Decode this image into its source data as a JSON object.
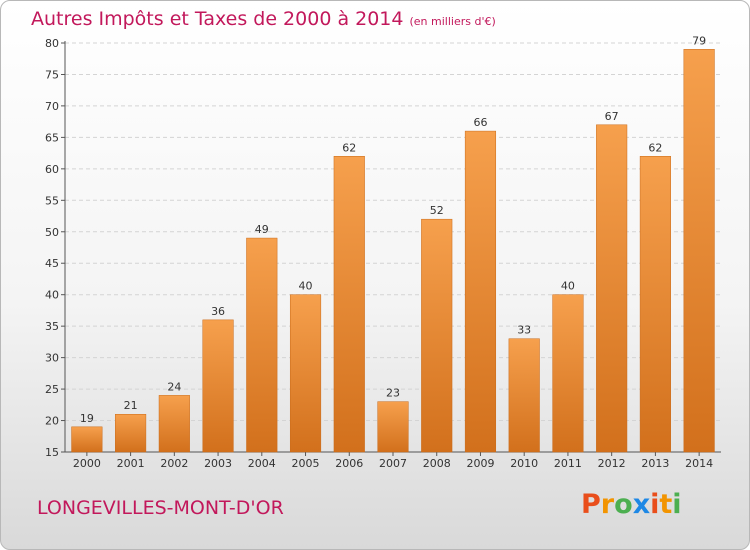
{
  "chart_data": {
    "type": "bar",
    "title": "Autres Impôts et Taxes de 2000 à 2014",
    "title_unit": "(en milliers d'€)",
    "categories": [
      "2000",
      "2001",
      "2002",
      "2003",
      "2004",
      "2005",
      "2006",
      "2007",
      "2008",
      "2009",
      "2010",
      "2011",
      "2012",
      "2013",
      "2014"
    ],
    "values": [
      19,
      21,
      24,
      36,
      49,
      40,
      62,
      23,
      52,
      66,
      33,
      40,
      67,
      62,
      79
    ],
    "ylim": [
      15,
      80
    ],
    "yticks": [
      15,
      20,
      25,
      30,
      35,
      40,
      45,
      50,
      55,
      60,
      65,
      70,
      75,
      80
    ],
    "xlabel": "",
    "ylabel": "",
    "grid": true,
    "legend": "none",
    "bar_color_top": "#f6a04d",
    "bar_color_bottom": "#d2701c"
  },
  "footer": {
    "commune": "LONGEVILLES-MONT-D'OR",
    "brand": "Proxiti",
    "brand_colors": [
      "#e94e1b",
      "#f29400",
      "#4caf50",
      "#1e88e5",
      "#e94e1b",
      "#f29400",
      "#4caf50"
    ]
  },
  "colors": {
    "title": "#c2185b"
  }
}
